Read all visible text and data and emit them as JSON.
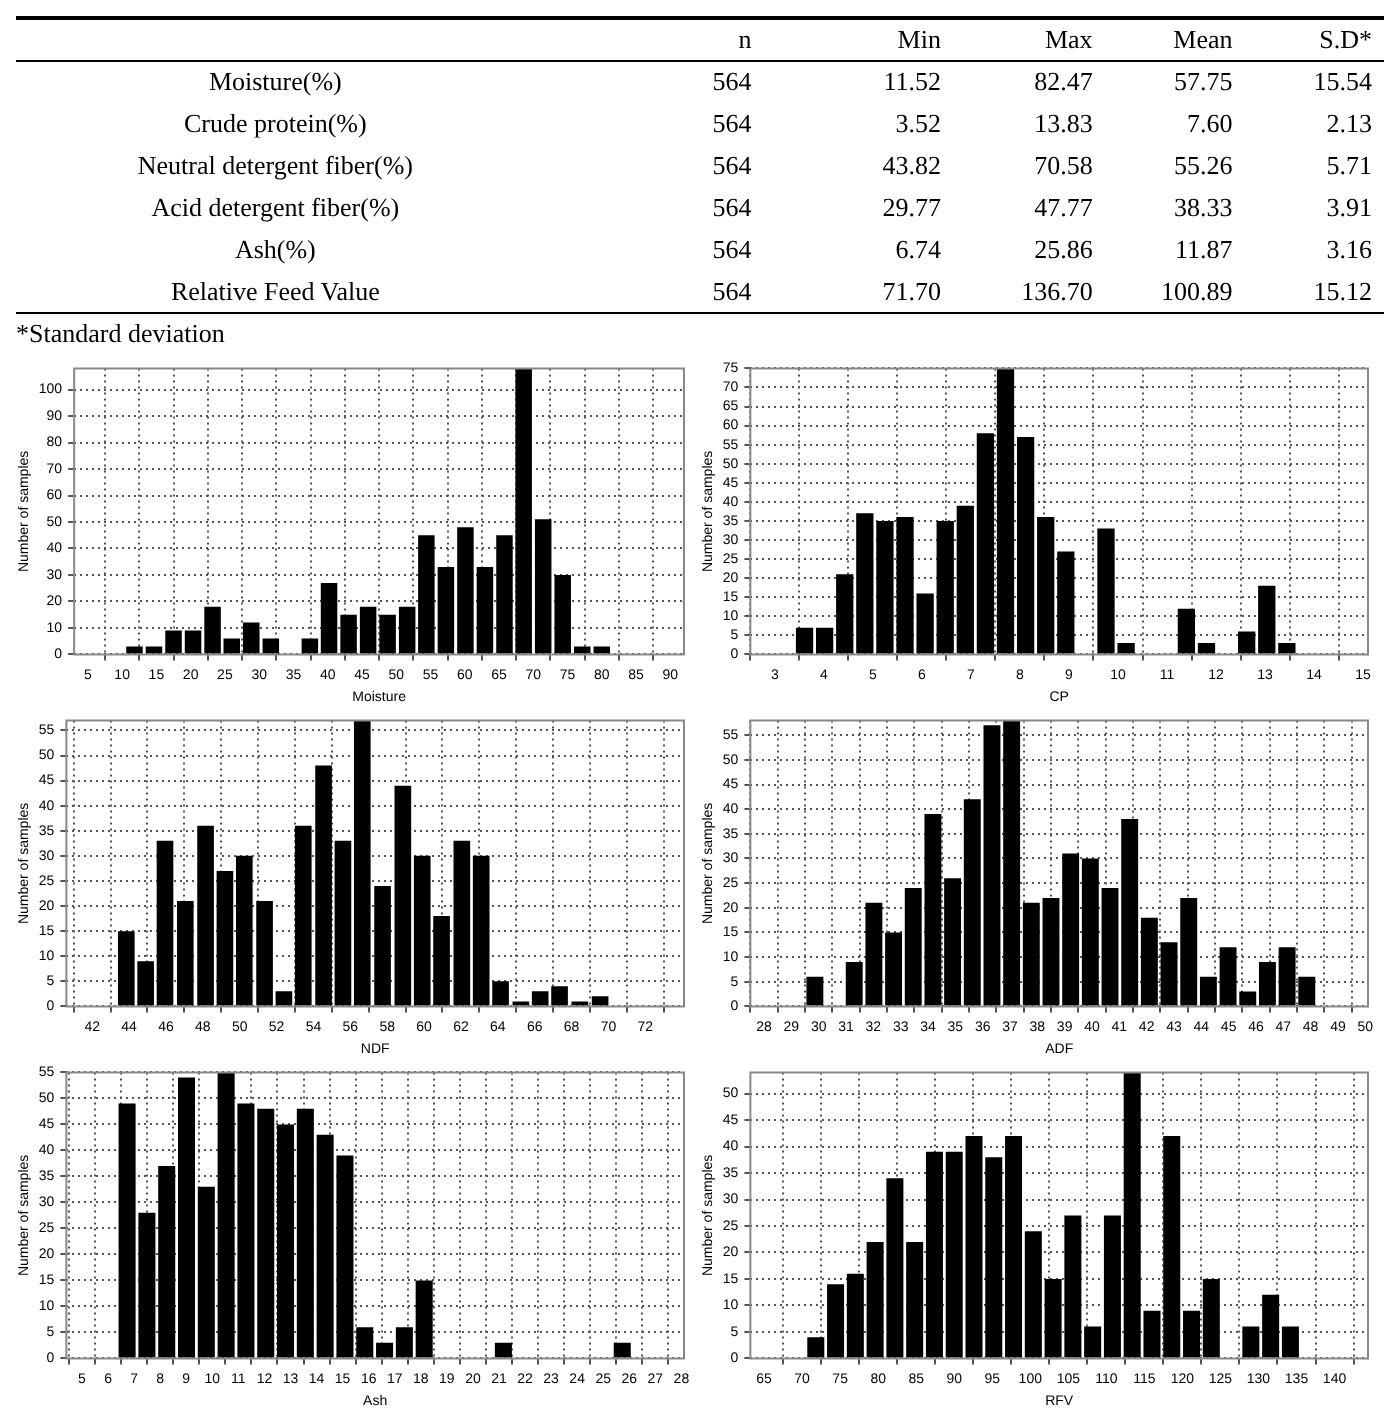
{
  "chart_data": [
    {
      "type": "other",
      "categories": [
        "n",
        "Min",
        "Max",
        "Mean",
        "S.D*"
      ],
      "y_categories": [
        "Moisture(%)",
        "Crude protein(%)",
        "Neutral detergent fiber(%)",
        "Acid detergent fiber(%)",
        "Ash(%)",
        "Relative Feed Value"
      ],
      "cells": [
        [
          "564",
          "11.52",
          "82.47",
          "57.75",
          "15.54"
        ],
        [
          "564",
          "3.52",
          "13.83",
          "7.60",
          "2.13"
        ],
        [
          "564",
          "43.82",
          "70.58",
          "55.26",
          "5.71"
        ],
        [
          "564",
          "29.77",
          "47.77",
          "38.33",
          "3.91"
        ],
        [
          "564",
          "6.74",
          "25.86",
          "11.87",
          "3.16"
        ],
        [
          "564",
          "71.70",
          "136.70",
          "100.89",
          "15.12"
        ]
      ],
      "data_labels": true,
      "annotations": [
        "*Standard deviation"
      ]
    },
    {
      "type": "histogram",
      "xlabel": "Moisture",
      "ylabel": "Number of samples",
      "color": "#000000",
      "grid": true,
      "bins": [
        10.4,
        13.2,
        16.1,
        18.9,
        21.8,
        24.6,
        27.4,
        30.3,
        33.1,
        36,
        38.8,
        41.6,
        44.5,
        47.3,
        50.2,
        53,
        55.8,
        58.7,
        61.5,
        64.4,
        67.2,
        70,
        72.9,
        75.7,
        78.6,
        81.4
      ],
      "values": [
        3,
        3,
        9,
        9,
        18,
        6,
        12,
        6,
        0,
        6,
        27,
        15,
        18,
        15,
        18,
        45,
        33,
        48,
        33,
        45,
        108,
        51,
        30,
        3,
        3
      ],
      "xlim": [
        3,
        92
      ],
      "xticks": [
        5,
        10,
        15,
        20,
        25,
        30,
        35,
        40,
        45,
        50,
        55,
        60,
        65,
        70,
        75,
        80,
        85,
        90
      ],
      "ylim": [
        0,
        108
      ],
      "yticks": [
        0,
        10,
        20,
        30,
        40,
        50,
        60,
        70,
        80,
        90,
        100
      ]
    },
    {
      "type": "histogram",
      "xlabel": "CP",
      "ylabel": "Number of samples",
      "color": "#000000",
      "grid": true,
      "bins": [
        3.4,
        3.81,
        4.22,
        4.63,
        5.04,
        5.45,
        5.86,
        6.27,
        6.68,
        7.09,
        7.5,
        7.91,
        8.32,
        8.73,
        9.14,
        9.55,
        9.96,
        10.37,
        10.78,
        11.19,
        11.6,
        12.01,
        12.42,
        12.83,
        13.24,
        13.65
      ],
      "values": [
        7,
        7,
        21,
        37,
        35,
        36,
        16,
        35,
        39,
        58,
        75,
        57,
        36,
        27,
        0,
        33,
        3,
        0,
        0,
        12,
        3,
        0,
        6,
        18,
        3
      ],
      "xlim": [
        2.5,
        15.1
      ],
      "xticks": [
        3,
        4,
        5,
        6,
        7,
        8,
        9,
        10,
        11,
        12,
        13,
        14,
        15
      ],
      "ylim": [
        0,
        75
      ],
      "yticks": [
        0,
        5,
        10,
        15,
        20,
        25,
        30,
        35,
        40,
        45,
        50,
        55,
        60,
        65,
        70,
        75
      ]
    },
    {
      "type": "histogram",
      "xlabel": "NDF",
      "ylabel": "Number of samples",
      "color": "#000000",
      "grid": true,
      "bins": [
        43.3,
        44.4,
        45.4,
        46.5,
        47.6,
        48.7,
        49.7,
        50.8,
        51.9,
        52.9,
        54,
        55.1,
        56.1,
        57.2,
        58.3,
        59.4,
        60.4,
        61.5,
        62.6,
        63.6,
        64.7,
        65.8,
        66.8,
        67.9,
        69,
        70.1
      ],
      "values": [
        15,
        9,
        33,
        21,
        36,
        27,
        30,
        21,
        3,
        36,
        48,
        33,
        57,
        24,
        44,
        30,
        18,
        33,
        30,
        5,
        1,
        3,
        4,
        1,
        2
      ],
      "xlim": [
        40.6,
        74.1
      ],
      "xticks": [
        42,
        44,
        46,
        48,
        50,
        52,
        54,
        56,
        58,
        60,
        62,
        64,
        66,
        68,
        70,
        72
      ],
      "ylim": [
        0,
        57
      ],
      "yticks": [
        0,
        5,
        10,
        15,
        20,
        25,
        30,
        35,
        40,
        45,
        50,
        55
      ]
    },
    {
      "type": "histogram",
      "xlabel": "ADF",
      "ylabel": "Number of samples",
      "color": "#000000",
      "grid": true,
      "bins": [
        29.5,
        30.22,
        30.94,
        31.66,
        32.38,
        33.1,
        33.82,
        34.54,
        35.26,
        35.98,
        36.7,
        37.42,
        38.14,
        38.86,
        39.58,
        40.3,
        41.02,
        41.74,
        42.46,
        43.18,
        43.9,
        44.62,
        45.34,
        46.06,
        46.78,
        47.5,
        48.22
      ],
      "values": [
        6,
        0,
        9,
        21,
        15,
        24,
        39,
        26,
        42,
        57,
        58,
        21,
        22,
        31,
        30,
        24,
        38,
        18,
        13,
        22,
        6,
        12,
        3,
        9,
        12,
        6
      ],
      "xlim": [
        27.5,
        50.1
      ],
      "xticks": [
        28,
        29,
        30,
        31,
        32,
        33,
        34,
        35,
        36,
        37,
        38,
        39,
        40,
        41,
        42,
        43,
        44,
        45,
        46,
        47,
        48,
        49,
        50
      ],
      "ylim": [
        0,
        58
      ],
      "yticks": [
        0,
        5,
        10,
        15,
        20,
        25,
        30,
        35,
        40,
        45,
        50,
        55
      ]
    },
    {
      "type": "histogram",
      "xlabel": "Ash",
      "ylabel": "Number of samples",
      "color": "#000000",
      "grid": true,
      "bins": [
        6.35,
        7.11,
        7.87,
        8.63,
        9.39,
        10.15,
        10.91,
        11.67,
        12.43,
        13.19,
        13.95,
        14.71,
        15.47,
        16.23,
        16.99,
        17.75,
        18.51,
        19.27,
        20.03,
        20.79,
        21.55,
        22.31,
        23.07,
        23.83,
        24.59,
        25.35,
        26.11
      ],
      "values": [
        49,
        28,
        37,
        54,
        33,
        55,
        49,
        48,
        45,
        48,
        43,
        39,
        6,
        3,
        6,
        15,
        0,
        0,
        0,
        3,
        0,
        0,
        0,
        0,
        0,
        3
      ],
      "xlim": [
        4.4,
        28.1
      ],
      "xticks": [
        5,
        6,
        7,
        8,
        9,
        10,
        11,
        12,
        13,
        14,
        15,
        16,
        17,
        18,
        19,
        20,
        21,
        22,
        23,
        24,
        25,
        26,
        27,
        28
      ],
      "ylim": [
        0,
        55
      ],
      "yticks": [
        0,
        5,
        10,
        15,
        20,
        25,
        30,
        35,
        40,
        45,
        50,
        55
      ]
    },
    {
      "type": "histogram",
      "xlabel": "RFV",
      "ylabel": "Number of samples",
      "color": "#000000",
      "grid": true,
      "bins": [
        70.5,
        73.1,
        75.7,
        78.3,
        80.9,
        83.5,
        86.1,
        88.7,
        91.3,
        93.9,
        96.5,
        99.1,
        101.7,
        104.3,
        106.9,
        109.5,
        112.1,
        114.7,
        117.3,
        119.9,
        122.5,
        125.1,
        127.7,
        130.3,
        132.9,
        135.5
      ],
      "values": [
        4,
        14,
        16,
        22,
        34,
        22,
        39,
        39,
        42,
        38,
        42,
        24,
        15,
        27,
        6,
        27,
        54,
        9,
        42,
        9,
        15,
        0,
        6,
        12,
        6
      ],
      "xlim": [
        63.2,
        144.4
      ],
      "xticks": [
        65,
        70,
        75,
        80,
        85,
        90,
        95,
        100,
        105,
        110,
        115,
        120,
        125,
        130,
        135,
        140
      ],
      "ylim": [
        0,
        54
      ],
      "yticks": [
        0,
        5,
        10,
        15,
        20,
        25,
        30,
        35,
        40,
        45,
        50
      ]
    }
  ]
}
